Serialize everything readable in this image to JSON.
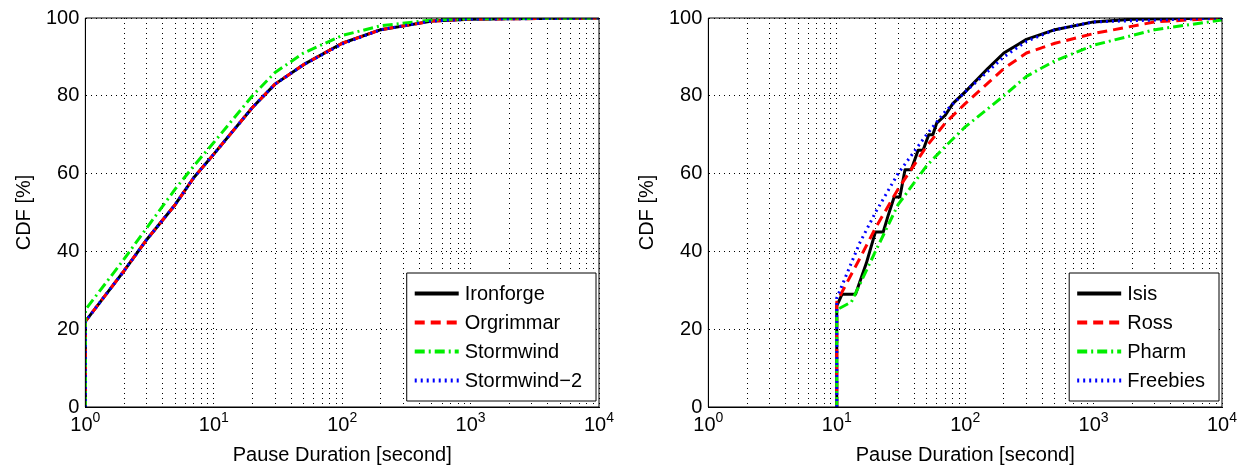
{
  "chart_data": [
    {
      "type": "line",
      "xlabel": "Pause Duration [second]",
      "ylabel": "CDF [%]",
      "log": "x",
      "grid": true,
      "legend": "bottom right",
      "xlim": [
        1,
        10000
      ],
      "ylim": [
        0,
        100
      ],
      "yticks": [
        0,
        20,
        40,
        60,
        80,
        100
      ],
      "xticks": [
        {
          "value": 1,
          "label": "10$^{0}$"
        },
        {
          "value": 2,
          "label": null
        },
        {
          "value": 3,
          "label": null
        },
        {
          "value": 4,
          "label": null
        },
        {
          "value": 5,
          "label": null
        },
        {
          "value": 6,
          "label": null
        },
        {
          "value": 7,
          "label": null
        },
        {
          "value": 8,
          "label": null
        },
        {
          "value": 9,
          "label": null
        },
        {
          "value": 10,
          "label": "10$^{1}$"
        },
        {
          "value": 20,
          "label": null
        },
        {
          "value": 30,
          "label": null
        },
        {
          "value": 40,
          "label": null
        },
        {
          "value": 50,
          "label": null
        },
        {
          "value": 60,
          "label": null
        },
        {
          "value": 70,
          "label": null
        },
        {
          "value": 80,
          "label": null
        },
        {
          "value": 90,
          "label": null
        },
        {
          "value": 100,
          "label": "10$^{2}$"
        },
        {
          "value": 200,
          "label": null
        },
        {
          "value": 300,
          "label": null
        },
        {
          "value": 400,
          "label": null
        },
        {
          "value": 500,
          "label": null
        },
        {
          "value": 600,
          "label": null
        },
        {
          "value": 700,
          "label": null
        },
        {
          "value": 800,
          "label": null
        },
        {
          "value": 900,
          "label": null
        },
        {
          "value": 1000,
          "label": "10$^{3}$"
        },
        {
          "value": 2000,
          "label": null
        },
        {
          "value": 3000,
          "label": null
        },
        {
          "value": 4000,
          "label": null
        },
        {
          "value": 5000,
          "label": null
        },
        {
          "value": 6000,
          "label": null
        },
        {
          "value": 7000,
          "label": null
        },
        {
          "value": 8000,
          "label": null
        },
        {
          "value": 9000,
          "label": null
        },
        {
          "value": 10000,
          "label": "10$^{4}$"
        }
      ],
      "series": [
        {
          "name": "Ironforge",
          "color": "#000000",
          "line_style": "solid",
          "x": [
            1,
            1,
            2,
            3,
            5,
            7,
            10,
            20,
            30,
            50,
            100,
            200,
            500,
            1000,
            10000
          ],
          "values": [
            0,
            22,
            35,
            43,
            52,
            59,
            65,
            77,
            83,
            88,
            93.5,
            97,
            99.2,
            99.7,
            100
          ]
        },
        {
          "name": "Orgrimmar",
          "color": "#ff0000",
          "line_style": "dashed",
          "x": [
            1,
            1,
            2,
            3,
            5,
            7,
            10,
            20,
            30,
            50,
            100,
            200,
            500,
            1000,
            10000
          ],
          "values": [
            0,
            22,
            35,
            43,
            52,
            59,
            65,
            77,
            83,
            88,
            93.5,
            97,
            99.2,
            99.7,
            100
          ]
        },
        {
          "name": "Stormwind",
          "color": "#00ee00",
          "line_style": "dashdot",
          "x": [
            1,
            1,
            2,
            3,
            5,
            7,
            10,
            20,
            30,
            50,
            100,
            200,
            500,
            1000,
            10000
          ],
          "values": [
            0,
            25,
            38,
            46,
            56,
            62,
            68,
            80,
            86,
            91,
            95.5,
            98,
            99.5,
            99.8,
            100
          ]
        },
        {
          "name": "Stormwind−2",
          "color": "#0000ff",
          "line_style": "dotted",
          "x": [
            1,
            1,
            2,
            3,
            5,
            7,
            10,
            20,
            30,
            50,
            100,
            200,
            500,
            1000,
            10000
          ],
          "values": [
            0,
            22,
            35,
            43,
            52,
            59,
            65,
            77,
            83,
            88,
            93.3,
            97,
            99.2,
            99.7,
            100
          ]
        }
      ]
    },
    {
      "type": "line",
      "xlabel": "Pause Duration [second]",
      "ylabel": "CDF [%]",
      "log": "x",
      "grid": true,
      "legend": "bottom right",
      "xlim": [
        1,
        10000
      ],
      "ylim": [
        0,
        100
      ],
      "yticks": [
        0,
        20,
        40,
        60,
        80,
        100
      ],
      "xticks": [
        {
          "value": 1,
          "label": "10$^{0}$"
        },
        {
          "value": 2,
          "label": null
        },
        {
          "value": 3,
          "label": null
        },
        {
          "value": 4,
          "label": null
        },
        {
          "value": 5,
          "label": null
        },
        {
          "value": 6,
          "label": null
        },
        {
          "value": 7,
          "label": null
        },
        {
          "value": 8,
          "label": null
        },
        {
          "value": 9,
          "label": null
        },
        {
          "value": 10,
          "label": "10$^{1}$"
        },
        {
          "value": 20,
          "label": null
        },
        {
          "value": 30,
          "label": null
        },
        {
          "value": 40,
          "label": null
        },
        {
          "value": 50,
          "label": null
        },
        {
          "value": 60,
          "label": null
        },
        {
          "value": 70,
          "label": null
        },
        {
          "value": 80,
          "label": null
        },
        {
          "value": 90,
          "label": null
        },
        {
          "value": 100,
          "label": "10$^{2}$"
        },
        {
          "value": 200,
          "label": null
        },
        {
          "value": 300,
          "label": null
        },
        {
          "value": 400,
          "label": null
        },
        {
          "value": 500,
          "label": null
        },
        {
          "value": 600,
          "label": null
        },
        {
          "value": 700,
          "label": null
        },
        {
          "value": 800,
          "label": null
        },
        {
          "value": 900,
          "label": null
        },
        {
          "value": 1000,
          "label": "10$^{3}$"
        },
        {
          "value": 2000,
          "label": null
        },
        {
          "value": 3000,
          "label": null
        },
        {
          "value": 4000,
          "label": null
        },
        {
          "value": 5000,
          "label": null
        },
        {
          "value": 6000,
          "label": null
        },
        {
          "value": 7000,
          "label": null
        },
        {
          "value": 8000,
          "label": null
        },
        {
          "value": 9000,
          "label": null
        },
        {
          "value": 10000,
          "label": "10$^{4}$"
        }
      ],
      "series": [
        {
          "name": "Isis",
          "color": "#000000",
          "line_style": "solid",
          "x": [
            10,
            10,
            11,
            14,
            17,
            20,
            23,
            25,
            28,
            31,
            34,
            38,
            43,
            47,
            52,
            56,
            60,
            70,
            80,
            100,
            150,
            200,
            300,
            500,
            1000,
            2000,
            10000
          ],
          "values": [
            0,
            26,
            29,
            29,
            37,
            45,
            45,
            49,
            54,
            54,
            61,
            61,
            66,
            66,
            70,
            70,
            73,
            75,
            78,
            81,
            87,
            91,
            94.5,
            97,
            99,
            99.7,
            100
          ]
        },
        {
          "name": "Ross",
          "color": "#ff0000",
          "line_style": "dashed",
          "x": [
            10,
            10,
            15,
            20,
            30,
            50,
            70,
            100,
            200,
            300,
            500,
            1000,
            3000,
            10000
          ],
          "values": [
            0,
            27,
            38,
            46,
            56,
            67,
            73,
            78,
            87,
            91,
            93.5,
            96,
            99,
            100
          ]
        },
        {
          "name": "Pharm",
          "color": "#00ee00",
          "line_style": "dashdot",
          "x": [
            10,
            10,
            13,
            20,
            30,
            50,
            70,
            100,
            200,
            300,
            500,
            1000,
            3000,
            10000
          ],
          "values": [
            0,
            25,
            27,
            40,
            52,
            62,
            67,
            72,
            80,
            85,
            89,
            93,
            97,
            99.5
          ]
        },
        {
          "name": "Freebies",
          "color": "#0000ff",
          "line_style": "dotted",
          "x": [
            10,
            10,
            15,
            20,
            30,
            50,
            70,
            100,
            200,
            300,
            500,
            1000,
            10000
          ],
          "values": [
            0,
            28,
            42,
            50,
            60,
            70,
            76,
            81,
            90,
            94,
            97,
            99,
            100
          ]
        }
      ]
    }
  ]
}
